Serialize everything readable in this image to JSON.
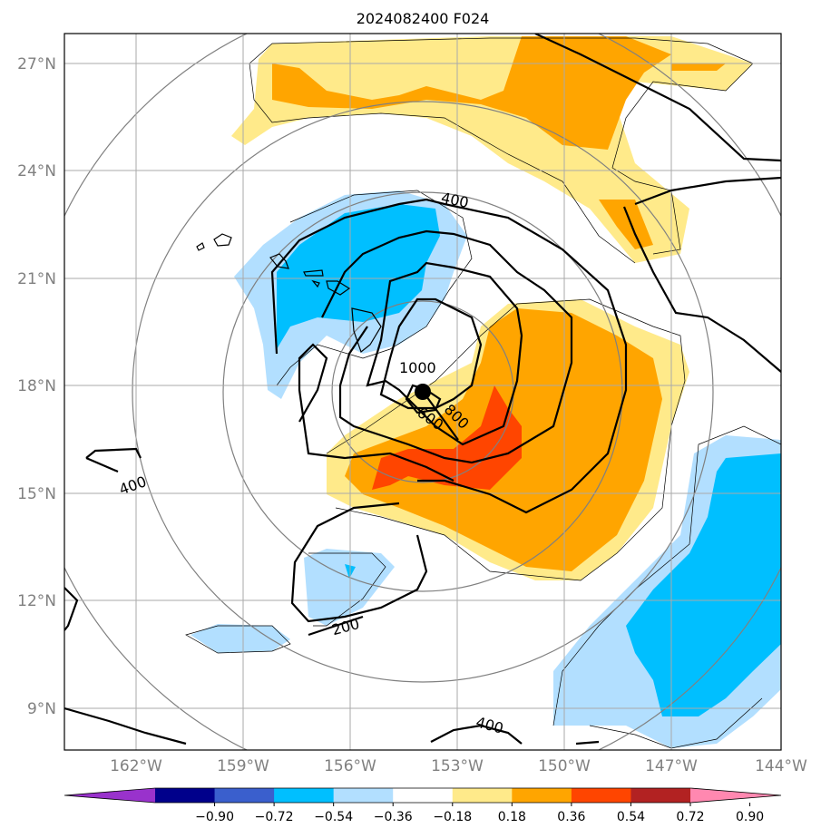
{
  "title": "2024082400 F024",
  "map": {
    "x_ticks": [
      "162°W",
      "159°W",
      "156°W",
      "153°W",
      "150°W",
      "147°W",
      "144°W"
    ],
    "y_ticks": [
      "27°N",
      "24°N",
      "21°N",
      "18°N",
      "15°N",
      "12°N",
      "9°N"
    ],
    "contour_labels": [
      "400",
      "400",
      "400",
      "1000",
      "800",
      "600",
      "200"
    ],
    "storm_center_marker": "filled-circle"
  },
  "colorbar": {
    "ticks": [
      "−0.90",
      "−0.72",
      "−0.54",
      "−0.36",
      "−0.18",
      "0.18",
      "0.36",
      "0.54",
      "0.72",
      "0.90"
    ],
    "colors": [
      "#9932cc",
      "#00008b",
      "#3a5fcd",
      "#00bfff",
      "#b2dfff",
      "#ffffff",
      "#ffea8a",
      "#ffa500",
      "#ff4500",
      "#b22222",
      "#ff88b0"
    ]
  },
  "palette": {
    "light_blue": "#b2dfff",
    "blue": "#00bfff",
    "light_yellow": "#ffea8a",
    "orange": "#ffa500",
    "red_orange": "#ff4500",
    "grid": "#aaaaaa",
    "range_ring": "#808080"
  }
}
